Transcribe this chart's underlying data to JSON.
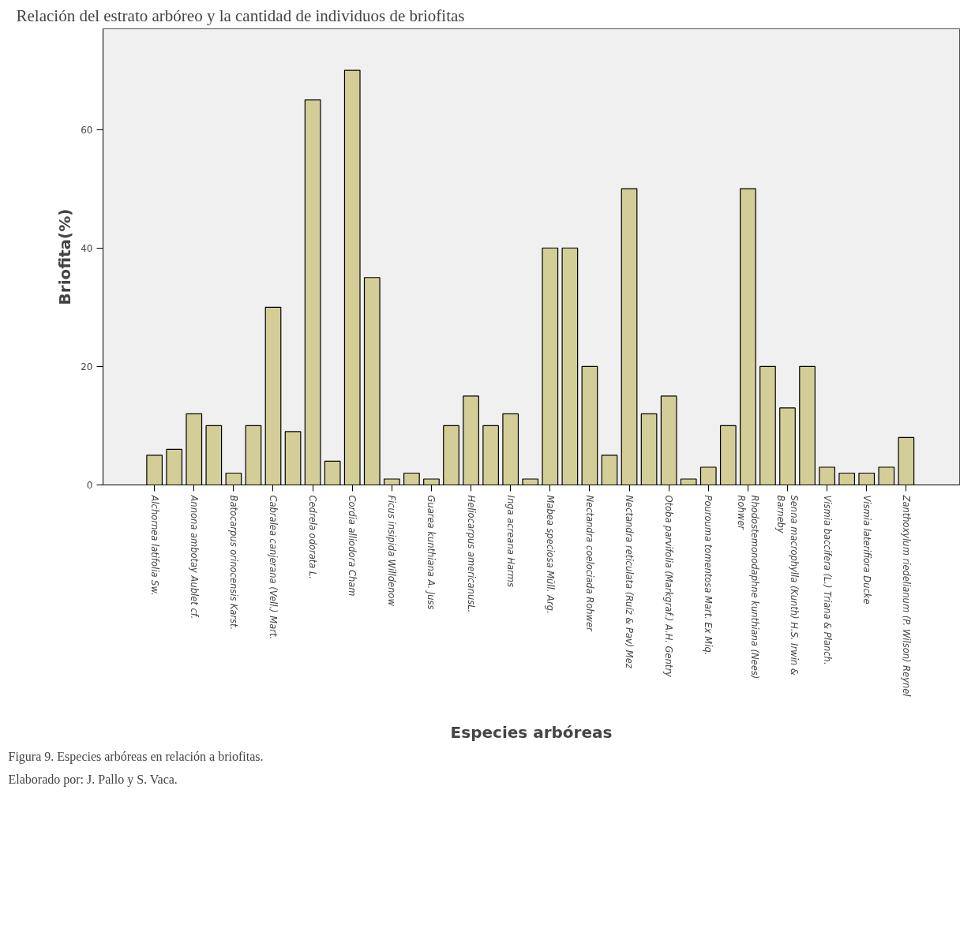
{
  "chart_data": {
    "type": "bar",
    "title": "Relación del estrato arbóreo y la cantidad de individuos de briofitas",
    "xlabel": "Especies arbóreas",
    "ylabel": "Briofita(%)",
    "categories": [
      "Alchornea latifolia Sw.",
      null,
      "Annona ambotay Aublet cf.",
      null,
      "Batocarpus orinocensis Karst.",
      null,
      "Cabralea canjerana (Vell.) Mart.",
      null,
      "Cedrela odorata L.",
      null,
      "Cordia alliodora Cham",
      null,
      "Ficus insipida Willdenow",
      null,
      "Guarea kunthiana A. Juss",
      null,
      "Heliocarpus americanusL.",
      null,
      "Inga acreana Harms",
      null,
      "Mabea speciosa  Müll. Arg.",
      null,
      "Nectandra coelociada Rohwer",
      null,
      "Nectandra reticulata (Ruíz & Pav) Mez",
      null,
      "Otoba parvifolia (Markgraf.) A.H. Gentry",
      null,
      "Pourouma tomentosa Mart. Ex Miq.",
      null,
      "Rhodostemonodaphne kunthiana (Nees)\nRohwer",
      null,
      "Senna macrophylla (Kunth) H.S. Irwin &\nBarneby",
      null,
      "Vismia baccifera (L.) Triana & Planch.",
      null,
      "Vismia laterifiora Ducke",
      null,
      "Zanthoxylum riedelianum (P. Wilson) Reynel"
    ],
    "values": [
      5,
      6,
      12,
      10,
      2,
      10,
      30,
      9,
      65,
      4,
      70,
      35,
      1,
      2,
      1,
      10,
      15,
      10,
      12,
      1,
      40,
      40,
      20,
      5,
      50,
      12,
      15,
      1,
      3,
      10,
      50,
      20,
      13,
      20,
      3,
      2,
      2,
      3,
      8
    ],
    "color": "#d3ce97",
    "ylim": [
      0,
      77
    ],
    "yticks": [
      0,
      20,
      40,
      60
    ],
    "grid": false,
    "annotations": [
      "Figura 9. Especies arbóreas en relación a briofitas.",
      "Elaborado por: J. Pallo y S. Vaca."
    ]
  }
}
